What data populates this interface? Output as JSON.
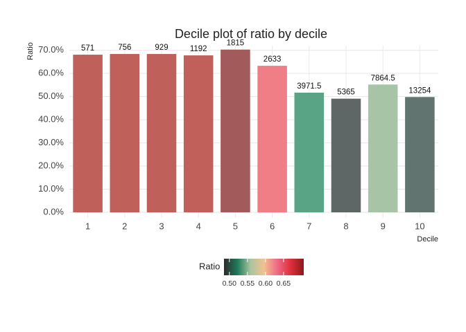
{
  "chart_data": {
    "type": "bar",
    "title": "Decile plot of ratio by decile",
    "x_label": "Decile",
    "y_label": "Ratio",
    "categories": [
      "1",
      "2",
      "3",
      "4",
      "5",
      "6",
      "7",
      "8",
      "9",
      "10"
    ],
    "values": [
      0.681,
      0.684,
      0.684,
      0.678,
      0.703,
      0.633,
      0.517,
      0.491,
      0.552,
      0.498
    ],
    "value_labels": [
      "571",
      "756",
      "929",
      "1192",
      "1815",
      "2633",
      "3971.5",
      "5365",
      "7864.5",
      "13254"
    ],
    "colors": [
      "#c0605a",
      "#c0605a",
      "#c0605a",
      "#c1605b",
      "#a35a5a",
      "#f07e86",
      "#5aa486",
      "#5f6766",
      "#a8c4a6",
      "#627470"
    ],
    "ylim": [
      0,
      0.72
    ],
    "yticks": [
      {
        "value": 0,
        "label": "0.0%"
      },
      {
        "value": 0.1,
        "label": "10.0%"
      },
      {
        "value": 0.2,
        "label": "20.0%"
      },
      {
        "value": 0.3,
        "label": "30.0%"
      },
      {
        "value": 0.4,
        "label": "40.0%"
      },
      {
        "value": 0.5,
        "label": "50.0%"
      },
      {
        "value": 0.6,
        "label": "60.0%"
      },
      {
        "value": 0.7,
        "label": "70.0%"
      }
    ],
    "grid": true,
    "legend": {
      "title": "Ratio",
      "lim": [
        0.485,
        0.706
      ],
      "ticks": [
        {
          "value": 0.5,
          "label": "0.50"
        },
        {
          "value": 0.55,
          "label": "0.55"
        },
        {
          "value": 0.6,
          "label": "0.60"
        },
        {
          "value": 0.65,
          "label": "0.65"
        }
      ],
      "colors": [
        "#2b2b2b",
        "#1f7a5a",
        "#a9c5a0",
        "#f2c28f",
        "#f06a84",
        "#e0303e",
        "#8b1a1a"
      ]
    }
  }
}
